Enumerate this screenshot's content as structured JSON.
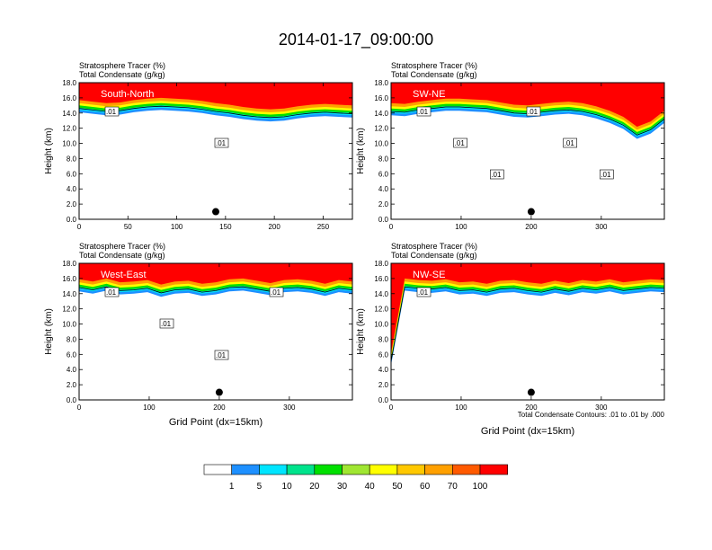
{
  "figure": {
    "title": "2014-01-17_09:00:00",
    "footnote": "Total Condensate Contours: .01 to .01 by .000"
  },
  "colorbar": {
    "levels": [
      "1",
      "5",
      "10",
      "20",
      "30",
      "40",
      "50",
      "60",
      "70",
      "100"
    ],
    "colors": [
      "#ffffff",
      "#1e90ff",
      "#00e5ff",
      "#00e38c",
      "#00e000",
      "#a0e632",
      "#ffff00",
      "#ffc800",
      "#ffa000",
      "#ff5a00",
      "#ff0000"
    ]
  },
  "chart_data": [
    {
      "type": "heatmap",
      "panel_label": "South-North",
      "left_title_1": "Stratosphere Tracer   (%)",
      "left_title_2": "Total Condensate   (g/kg)",
      "xlabel": "",
      "ylabel": "Height (km)",
      "xlim": [
        0,
        280
      ],
      "ylim": [
        0,
        18
      ],
      "xticks": [
        0,
        50,
        100,
        150,
        200,
        250
      ],
      "yticks": [
        "0.0",
        "2.0",
        "4.0",
        "6.0",
        "8.0",
        "10.0",
        "12.0",
        "14.0",
        "16.0",
        "18.0"
      ],
      "tropopause_km": [
        15.0,
        14.8,
        14.6,
        14.7,
        15.0,
        15.2,
        15.3,
        15.2,
        15.1,
        14.9,
        14.6,
        14.4,
        14.1,
        13.9,
        13.8,
        13.9,
        14.2,
        14.4,
        14.5,
        14.4,
        14.3
      ],
      "contour_labels": [
        ".01",
        ".01"
      ],
      "marker": {
        "x": 140,
        "y": 1.0
      }
    },
    {
      "type": "heatmap",
      "panel_label": "SW-NE",
      "left_title_1": "Stratosphere Tracer   (%)",
      "left_title_2": "Total Condensate   (g/kg)",
      "xlabel": "",
      "ylabel": "Height (km)",
      "xlim": [
        0,
        390
      ],
      "ylim": [
        0,
        18
      ],
      "xticks": [
        0,
        100,
        200,
        300
      ],
      "yticks": [
        "0.0",
        "2.0",
        "4.0",
        "6.0",
        "8.0",
        "10.0",
        "12.0",
        "14.0",
        "16.0",
        "18.0"
      ],
      "tropopause_km": [
        14.6,
        14.5,
        14.8,
        15.0,
        15.2,
        15.2,
        15.1,
        15.0,
        14.7,
        14.4,
        14.3,
        14.5,
        14.7,
        14.8,
        14.6,
        14.2,
        13.6,
        12.8,
        11.5,
        12.2,
        13.6
      ],
      "contour_labels": [
        ".01",
        ".01",
        ".01",
        ".01",
        ".01",
        ".01"
      ],
      "marker": {
        "x": 200,
        "y": 1.0
      }
    },
    {
      "type": "heatmap",
      "panel_label": "West-East",
      "left_title_1": "Stratosphere Tracer   (%)",
      "left_title_2": "Total Condensate   (g/kg)",
      "xlabel": "Grid Point (dx=15km)",
      "ylabel": "Height (km)",
      "xlim": [
        0,
        390
      ],
      "ylim": [
        0,
        18
      ],
      "xticks": [
        0,
        100,
        200,
        300
      ],
      "yticks": [
        "0.0",
        "2.0",
        "4.0",
        "6.0",
        "8.0",
        "10.0",
        "12.0",
        "14.0",
        "16.0",
        "18.0"
      ],
      "tropopause_km": [
        15.2,
        14.9,
        15.3,
        14.8,
        14.9,
        15.1,
        14.5,
        14.9,
        15.0,
        14.6,
        14.8,
        15.2,
        15.3,
        15.0,
        14.7,
        15.1,
        15.2,
        15.0,
        14.6,
        15.1,
        14.9
      ],
      "contour_labels": [
        ".01",
        ".01",
        ".01",
        ".01"
      ],
      "marker": {
        "x": 200,
        "y": 1.0
      }
    },
    {
      "type": "heatmap",
      "panel_label": "NW-SE",
      "left_title_1": "Stratosphere Tracer   (%)",
      "left_title_2": "Total Condensate   (g/kg)",
      "xlabel": "Grid Point (dx=15km)",
      "ylabel": "Height (km)",
      "xlim": [
        0,
        390
      ],
      "ylim": [
        0,
        18
      ],
      "xticks": [
        0,
        100,
        200,
        300
      ],
      "yticks": [
        "0.0",
        "2.0",
        "4.0",
        "6.0",
        "8.0",
        "10.0",
        "12.0",
        "14.0",
        "16.0",
        "18.0"
      ],
      "tropopause_km": [
        5.5,
        15.3,
        15.1,
        15.0,
        15.2,
        14.8,
        14.9,
        14.6,
        15.0,
        15.1,
        14.8,
        14.6,
        15.0,
        14.7,
        15.1,
        14.9,
        15.2,
        14.8,
        15.0,
        15.2,
        15.1
      ],
      "contour_labels": [
        ".01"
      ],
      "marker": {
        "x": 200,
        "y": 1.0
      }
    }
  ]
}
